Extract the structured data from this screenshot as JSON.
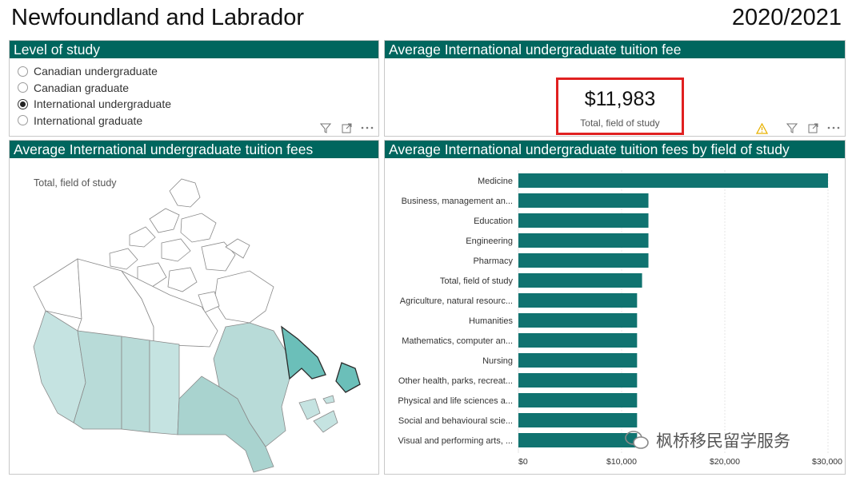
{
  "header": {
    "title": "Newfoundland and Labrador",
    "year": "2020/2021"
  },
  "level_panel": {
    "title": "Level of study",
    "options": [
      {
        "label": "Canadian undergraduate",
        "selected": false
      },
      {
        "label": "Canadian graduate",
        "selected": false
      },
      {
        "label": "International undergraduate",
        "selected": true
      },
      {
        "label": "International graduate",
        "selected": false
      }
    ]
  },
  "kpi_panel": {
    "title": "Average International undergraduate tuition fee",
    "value": "$11,983",
    "label": "Total, field of study"
  },
  "map_panel": {
    "title": "Average International undergraduate tuition fees",
    "subtitle": "Total, field of study",
    "colors": {
      "highlight": "#6bbfb9",
      "east": "#a9d3cf",
      "central": "#b8dbd8",
      "west": "#c5e3e1",
      "empty": "#ffffff"
    }
  },
  "bars_panel": {
    "title": "Average International undergraduate tuition fees by field of study",
    "bar_color": "#107370"
  },
  "chart_data": {
    "type": "bar",
    "orientation": "horizontal",
    "title": "Average International undergraduate tuition fees by field of study",
    "categories": [
      "Medicine",
      "Business, management an...",
      "Education",
      "Engineering",
      "Pharmacy",
      "Total, field of study",
      "Agriculture, natural resourc...",
      "Humanities",
      "Mathematics, computer an...",
      "Nursing",
      "Other health, parks, recreat...",
      "Physical and life sciences a...",
      "Social and behavioural scie...",
      "Visual and performing arts, ..."
    ],
    "values": [
      30000,
      12600,
      12600,
      12600,
      12600,
      11983,
      11500,
      11500,
      11500,
      11500,
      11500,
      11500,
      11500,
      11500
    ],
    "xlim": [
      0,
      30000
    ],
    "xticks": [
      "$0",
      "$10,000",
      "$20,000",
      "$30,000"
    ],
    "grid": true
  },
  "watermark": {
    "text": "枫桥移民留学服务"
  }
}
